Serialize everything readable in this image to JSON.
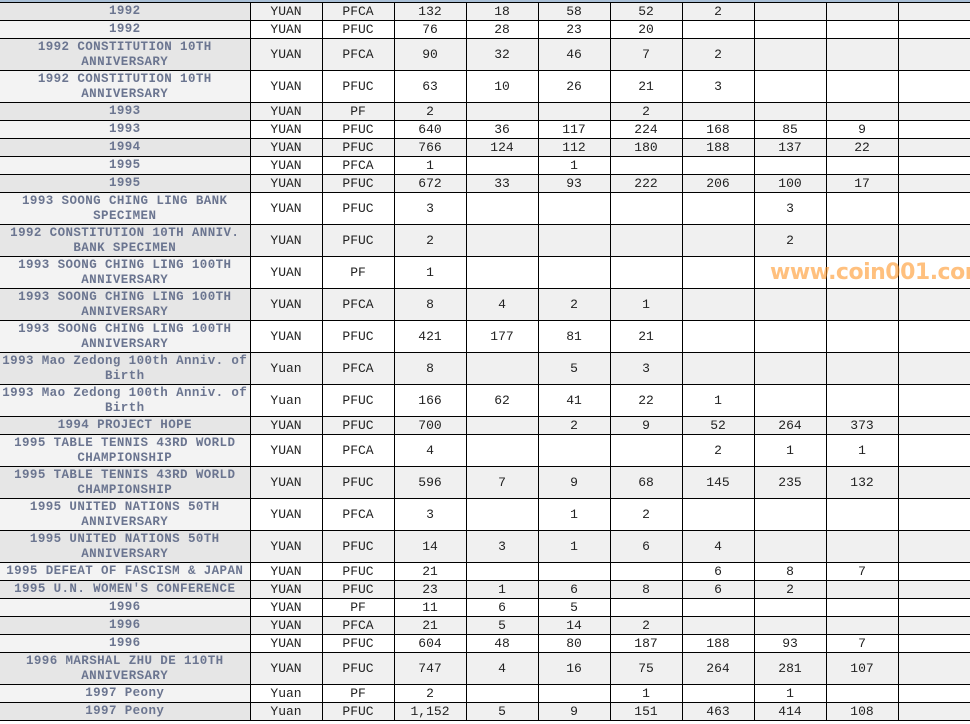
{
  "watermark": "www.coin001.com",
  "colors": {
    "name_text": "#6b7590",
    "row_shade": "#f0f0f0",
    "watermark": "#ff9628"
  },
  "rows": [
    {
      "name": "1992",
      "unit": "YUAN",
      "type": "PFCA",
      "total": "132",
      "grades": [
        "18",
        "58",
        "52",
        "2",
        "",
        "",
        ""
      ],
      "lines": 1
    },
    {
      "name": "1992",
      "unit": "YUAN",
      "type": "PFUC",
      "total": "76",
      "grades": [
        "28",
        "23",
        "20",
        "",
        "",
        "",
        ""
      ],
      "lines": 1
    },
    {
      "name": "1992 CONSTITUTION 10TH ANNIVERSARY",
      "unit": "YUAN",
      "type": "PFCA",
      "total": "90",
      "grades": [
        "32",
        "46",
        "7",
        "2",
        "",
        "",
        ""
      ],
      "lines": 2
    },
    {
      "name": "1992 CONSTITUTION 10TH ANNIVERSARY",
      "unit": "YUAN",
      "type": "PFUC",
      "total": "63",
      "grades": [
        "10",
        "26",
        "21",
        "3",
        "",
        "",
        ""
      ],
      "lines": 2
    },
    {
      "name": "1993",
      "unit": "YUAN",
      "type": "PF",
      "total": "2",
      "grades": [
        "",
        "",
        "2",
        "",
        "",
        "",
        ""
      ],
      "lines": 1
    },
    {
      "name": "1993",
      "unit": "YUAN",
      "type": "PFUC",
      "total": "640",
      "grades": [
        "36",
        "117",
        "224",
        "168",
        "85",
        "9",
        ""
      ],
      "lines": 1
    },
    {
      "name": "1994",
      "unit": "YUAN",
      "type": "PFUC",
      "total": "766",
      "grades": [
        "124",
        "112",
        "180",
        "188",
        "137",
        "22",
        ""
      ],
      "lines": 1
    },
    {
      "name": "1995",
      "unit": "YUAN",
      "type": "PFCA",
      "total": "1",
      "grades": [
        "",
        "1",
        "",
        "",
        "",
        "",
        ""
      ],
      "lines": 1
    },
    {
      "name": "1995",
      "unit": "YUAN",
      "type": "PFUC",
      "total": "672",
      "grades": [
        "33",
        "93",
        "222",
        "206",
        "100",
        "17",
        ""
      ],
      "lines": 1
    },
    {
      "name": "1993 SOONG CHING LING BANK SPECIMEN",
      "unit": "YUAN",
      "type": "PFUC",
      "total": "3",
      "grades": [
        "",
        "",
        "",
        "",
        "3",
        "",
        ""
      ],
      "lines": 2
    },
    {
      "name": "1992 CONSTITUTION 10TH ANNIV. BANK SPECIMEN",
      "unit": "YUAN",
      "type": "PFUC",
      "total": "2",
      "grades": [
        "",
        "",
        "",
        "",
        "2",
        "",
        ""
      ],
      "lines": 2
    },
    {
      "name": "1993 SOONG CHING LING 100TH ANNIVERSARY",
      "unit": "YUAN",
      "type": "PF",
      "total": "1",
      "grades": [
        "",
        "",
        "",
        "",
        "",
        "",
        ""
      ],
      "lines": 2
    },
    {
      "name": "1993 SOONG CHING LING 100TH ANNIVERSARY",
      "unit": "YUAN",
      "type": "PFCA",
      "total": "8",
      "grades": [
        "4",
        "2",
        "1",
        "",
        "",
        "",
        ""
      ],
      "lines": 2
    },
    {
      "name": "1993 SOONG CHING LING 100TH ANNIVERSARY",
      "unit": "YUAN",
      "type": "PFUC",
      "total": "421",
      "grades": [
        "177",
        "81",
        "21",
        "",
        "",
        "",
        ""
      ],
      "lines": 2
    },
    {
      "name": "1993 Mao Zedong 100th Anniv. of Birth",
      "unit": "Yuan",
      "type": "PFCA",
      "total": "8",
      "grades": [
        "",
        "5",
        "3",
        "",
        "",
        "",
        ""
      ],
      "lines": 2
    },
    {
      "name": "1993 Mao Zedong 100th Anniv. of Birth",
      "unit": "Yuan",
      "type": "PFUC",
      "total": "166",
      "grades": [
        "62",
        "41",
        "22",
        "1",
        "",
        "",
        ""
      ],
      "lines": 2
    },
    {
      "name": "1994 PROJECT HOPE",
      "unit": "YUAN",
      "type": "PFUC",
      "total": "700",
      "grades": [
        "",
        "2",
        "9",
        "52",
        "264",
        "373",
        ""
      ],
      "lines": 1
    },
    {
      "name": "1995 TABLE TENNIS 43RD WORLD CHAMPIONSHIP",
      "unit": "YUAN",
      "type": "PFCA",
      "total": "4",
      "grades": [
        "",
        "",
        "",
        "2",
        "1",
        "1",
        ""
      ],
      "lines": 2
    },
    {
      "name": "1995 TABLE TENNIS 43RD WORLD CHAMPIONSHIP",
      "unit": "YUAN",
      "type": "PFUC",
      "total": "596",
      "grades": [
        "7",
        "9",
        "68",
        "145",
        "235",
        "132",
        ""
      ],
      "lines": 2
    },
    {
      "name": "1995 UNITED NATIONS 50TH ANNIVERSARY",
      "unit": "YUAN",
      "type": "PFCA",
      "total": "3",
      "grades": [
        "",
        "1",
        "2",
        "",
        "",
        "",
        ""
      ],
      "lines": 2
    },
    {
      "name": "1995 UNITED NATIONS 50TH ANNIVERSARY",
      "unit": "YUAN",
      "type": "PFUC",
      "total": "14",
      "grades": [
        "3",
        "1",
        "6",
        "4",
        "",
        "",
        ""
      ],
      "lines": 2
    },
    {
      "name": "1995 DEFEAT OF FASCISM & JAPAN",
      "unit": "YUAN",
      "type": "PFUC",
      "total": "21",
      "grades": [
        "",
        "",
        "",
        "6",
        "8",
        "7",
        ""
      ],
      "lines": 1
    },
    {
      "name": "1995 U.N. WOMEN'S CONFERENCE",
      "unit": "YUAN",
      "type": "PFUC",
      "total": "23",
      "grades": [
        "1",
        "6",
        "8",
        "6",
        "2",
        "",
        ""
      ],
      "lines": 1
    },
    {
      "name": "1996",
      "unit": "YUAN",
      "type": "PF",
      "total": "11",
      "grades": [
        "6",
        "5",
        "",
        "",
        "",
        "",
        ""
      ],
      "lines": 1
    },
    {
      "name": "1996",
      "unit": "YUAN",
      "type": "PFCA",
      "total": "21",
      "grades": [
        "5",
        "14",
        "2",
        "",
        "",
        "",
        ""
      ],
      "lines": 1
    },
    {
      "name": "1996",
      "unit": "YUAN",
      "type": "PFUC",
      "total": "604",
      "grades": [
        "48",
        "80",
        "187",
        "188",
        "93",
        "7",
        ""
      ],
      "lines": 1
    },
    {
      "name": "1996 MARSHAL ZHU DE 110TH ANNIVERSARY",
      "unit": "YUAN",
      "type": "PFUC",
      "total": "747",
      "grades": [
        "4",
        "16",
        "75",
        "264",
        "281",
        "107",
        ""
      ],
      "lines": 2
    },
    {
      "name": "1997 Peony",
      "unit": "Yuan",
      "type": "PF",
      "total": "2",
      "grades": [
        "",
        "",
        "1",
        "",
        "1",
        "",
        ""
      ],
      "lines": 1
    },
    {
      "name": "1997 Peony",
      "unit": "Yuan",
      "type": "PFUC",
      "total": "1,152",
      "grades": [
        "5",
        "9",
        "151",
        "463",
        "414",
        "108",
        ""
      ],
      "lines": 1
    }
  ]
}
